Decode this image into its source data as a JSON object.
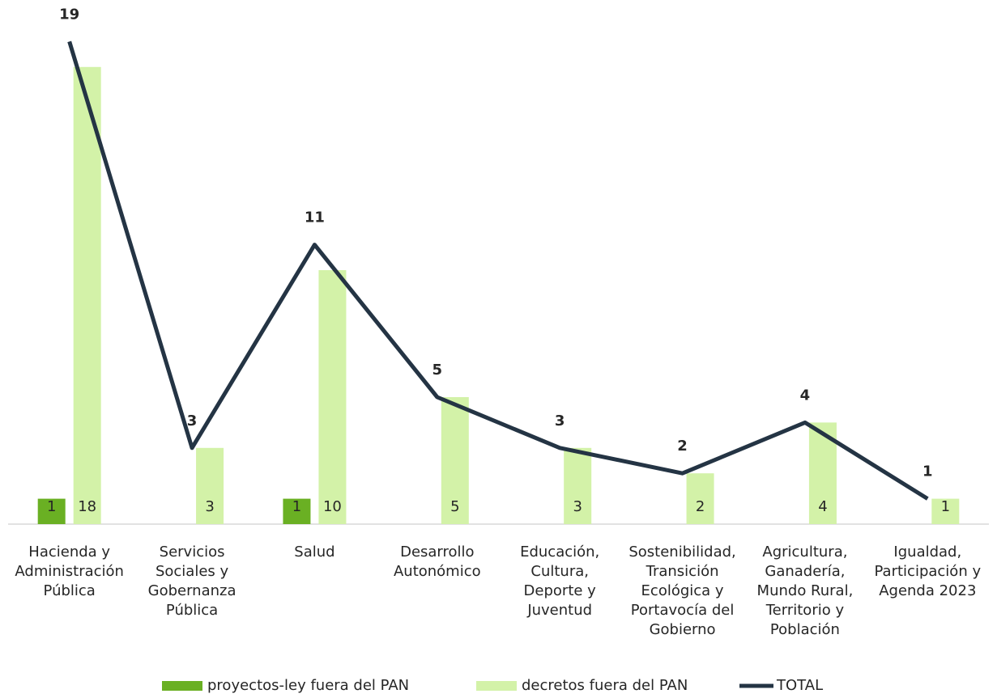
{
  "chart_data": {
    "type": "bar-line",
    "categories": [
      [
        "Hacienda y",
        "Administración",
        "Pública"
      ],
      [
        "Servicios",
        "Sociales y",
        "Gobernanza",
        "Pública"
      ],
      [
        "Salud"
      ],
      [
        "Desarrollo",
        "Autonómico"
      ],
      [
        "Educación,",
        "Cultura,",
        "Deporte y",
        "Juventud"
      ],
      [
        "Sostenibilidad,",
        "Transición",
        "Ecológica y",
        "Portavocía del",
        "Gobierno"
      ],
      [
        "Agricultura,",
        "Ganadería,",
        "Mundo Rural,",
        "Territorio y",
        "Población"
      ],
      [
        "Igualdad,",
        "Participación y",
        "Agenda 2023"
      ]
    ],
    "series": [
      {
        "name": "proyectos-ley fuera del PAN",
        "color": "#6ab023",
        "kind": "bar",
        "values": [
          1,
          null,
          1,
          null,
          null,
          null,
          null,
          null
        ]
      },
      {
        "name": "decretos fuera del PAN",
        "color": "#d3f2a8",
        "kind": "bar",
        "values": [
          18,
          3,
          10,
          5,
          3,
          2,
          4,
          1
        ]
      },
      {
        "name": "TOTAL",
        "color": "#243444",
        "kind": "line",
        "values": [
          19,
          3,
          11,
          5,
          3,
          2,
          4,
          1
        ]
      }
    ],
    "ylim": [
      0,
      20
    ],
    "legend": "bottom"
  }
}
